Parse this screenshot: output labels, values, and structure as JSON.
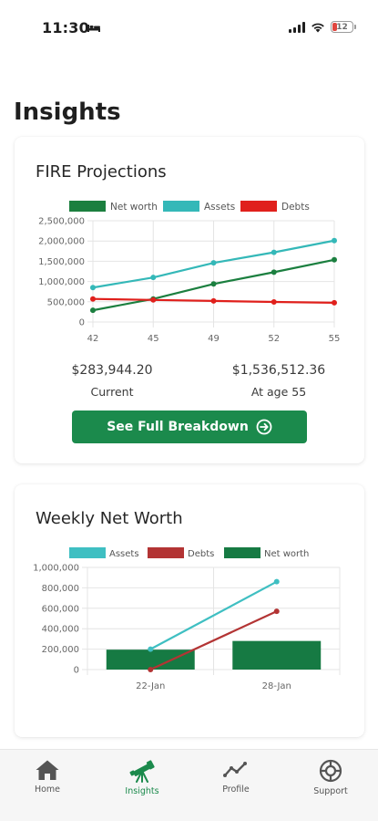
{
  "status_bar": {
    "time": "11:30",
    "battery_level": "12"
  },
  "page": {
    "title": "Insights"
  },
  "fire_card": {
    "title": "FIRE Projections",
    "current_value": "$283,944.20",
    "current_label": "Current",
    "target_value": "$1,536,512.36",
    "target_label": "At age 55",
    "button_label": "See Full Breakdown",
    "chart_data": {
      "type": "line",
      "categories": [
        "42",
        "45",
        "49",
        "52",
        "55"
      ],
      "series": [
        {
          "name": "Net worth",
          "color": "#1b7f3f",
          "values": [
            290000,
            570000,
            940000,
            1230000,
            1536512
          ]
        },
        {
          "name": "Assets",
          "color": "#34b8b8",
          "values": [
            850000,
            1100000,
            1460000,
            1720000,
            2010000
          ]
        },
        {
          "name": "Debts",
          "color": "#e0201c",
          "values": [
            570000,
            545000,
            520000,
            495000,
            475000
          ]
        }
      ],
      "ylim": [
        0,
        2500000
      ],
      "yticks": [
        "0",
        "500,000",
        "1,000,000",
        "1,500,000",
        "2,000,000",
        "2,500,000"
      ],
      "ytick_values": [
        0,
        500000,
        1000000,
        1500000,
        2000000,
        2500000
      ],
      "legend": "top",
      "grid": true
    }
  },
  "weekly_card": {
    "title": "Weekly Net Worth",
    "chart_data": {
      "type": "bar",
      "categories": [
        "22-Jan",
        "28-Jan"
      ],
      "series": [
        {
          "name": "Assets",
          "kind": "line",
          "color": "#3fbfc2",
          "values": [
            200000,
            860000
          ]
        },
        {
          "name": "Debts",
          "kind": "line",
          "color": "#b33434",
          "values": [
            0,
            570000
          ]
        },
        {
          "name": "Net worth",
          "kind": "bar",
          "color": "#167a43",
          "values": [
            195000,
            280000
          ]
        }
      ],
      "ylim": [
        0,
        1000000
      ],
      "yticks": [
        "0",
        "200,000",
        "400,000",
        "600,000",
        "800,000",
        "1,000,000"
      ],
      "ytick_values": [
        0,
        200000,
        400000,
        600000,
        800000,
        1000000
      ],
      "legend": "top",
      "grid": true
    }
  },
  "tabs": [
    {
      "label": "Home",
      "icon": "home-icon",
      "active": false
    },
    {
      "label": "Insights",
      "icon": "telescope-icon",
      "active": true
    },
    {
      "label": "Profile",
      "icon": "line-chart-icon",
      "active": false
    },
    {
      "label": "Support",
      "icon": "lifebuoy-icon",
      "active": false
    }
  ],
  "colors": {
    "accent": "#1b8a4c"
  }
}
